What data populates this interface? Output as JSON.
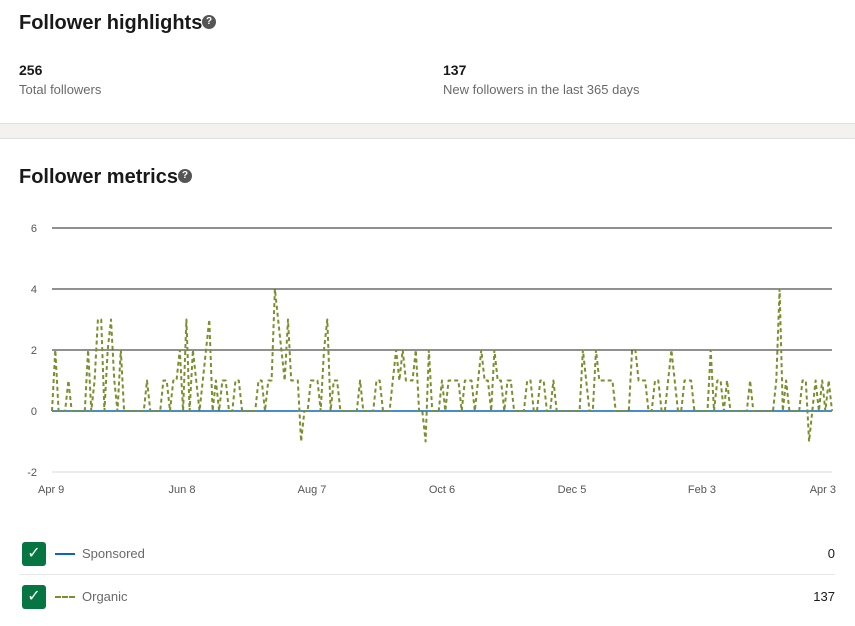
{
  "highlights": {
    "title": "Follower highlights",
    "help_icon": "?",
    "stats": [
      {
        "value": "256",
        "label": "Total followers"
      },
      {
        "value": "137",
        "label": "New followers in the last 365 days"
      }
    ]
  },
  "metrics": {
    "title": "Follower metrics",
    "help_icon": "?"
  },
  "legend": [
    {
      "label": "Sponsored",
      "value": "0",
      "checked": true,
      "check_glyph": "✓",
      "color": "#0a66c2",
      "style": "solid"
    },
    {
      "label": "Organic",
      "value": "137",
      "checked": true,
      "check_glyph": "✓",
      "color": "#7a8f2e",
      "style": "dashed"
    }
  ],
  "chart_data": {
    "type": "line",
    "x_tick_labels": [
      "Apr 9",
      "Jun 8",
      "Aug 7",
      "Oct 6",
      "Dec 5",
      "Feb 3",
      "Apr 3"
    ],
    "y_ticks": [
      6,
      4,
      2,
      0,
      -2
    ],
    "ylim": [
      -2,
      6
    ],
    "grid": true,
    "series": [
      {
        "name": "Sponsored",
        "color": "#0a66c2",
        "style": "solid",
        "values": [
          0
        ]
      },
      {
        "name": "Organic",
        "color": "#7a8f2e",
        "style": "dashed",
        "values": [
          0,
          2,
          0,
          0,
          0,
          1,
          0,
          0,
          0,
          0,
          0,
          2,
          0,
          1,
          3,
          3,
          0,
          2,
          3,
          1,
          0,
          2,
          0,
          0,
          0,
          0,
          0,
          0,
          0,
          1,
          0,
          0,
          0,
          0,
          1,
          1,
          0,
          1,
          1,
          2,
          0,
          3,
          0,
          2,
          1,
          0,
          1,
          2,
          3,
          0,
          1,
          0,
          1,
          1,
          0,
          0,
          1,
          1,
          0,
          0,
          0,
          0,
          0,
          1,
          1,
          0,
          1,
          1,
          4,
          3,
          2,
          1,
          3,
          1,
          1,
          1,
          -1,
          0,
          0,
          1,
          1,
          1,
          0,
          2,
          3,
          0,
          1,
          1,
          0,
          0,
          0,
          0,
          0,
          0,
          1,
          0,
          0,
          0,
          0,
          1,
          1,
          0,
          0,
          0,
          1,
          2,
          1,
          2,
          1,
          1,
          1,
          2,
          0,
          0,
          -1,
          2,
          0,
          0,
          0,
          1,
          0,
          1,
          1,
          1,
          1,
          0,
          1,
          1,
          1,
          0,
          1,
          2,
          1,
          1,
          0,
          2,
          1,
          1,
          0,
          1,
          1,
          0,
          0,
          0,
          0,
          1,
          1,
          0,
          0,
          1,
          1,
          0,
          0,
          1,
          0,
          0,
          0,
          0,
          0,
          0,
          0,
          0,
          2,
          1,
          0,
          0,
          2,
          1,
          1,
          1,
          1,
          1,
          0,
          0,
          0,
          0,
          0,
          2,
          2,
          1,
          1,
          1,
          0,
          0,
          1,
          1,
          0,
          0,
          1,
          2,
          1,
          0,
          0,
          1,
          1,
          1,
          0,
          0,
          0,
          0,
          0,
          2,
          0,
          1,
          1,
          0,
          1,
          0,
          0,
          0,
          0,
          0,
          0,
          1,
          0,
          0,
          0,
          0,
          0,
          0,
          0,
          1,
          4,
          0,
          1,
          0,
          0,
          0,
          0,
          1,
          1,
          -1,
          0,
          1,
          0,
          1,
          0,
          1,
          0
        ]
      }
    ]
  }
}
